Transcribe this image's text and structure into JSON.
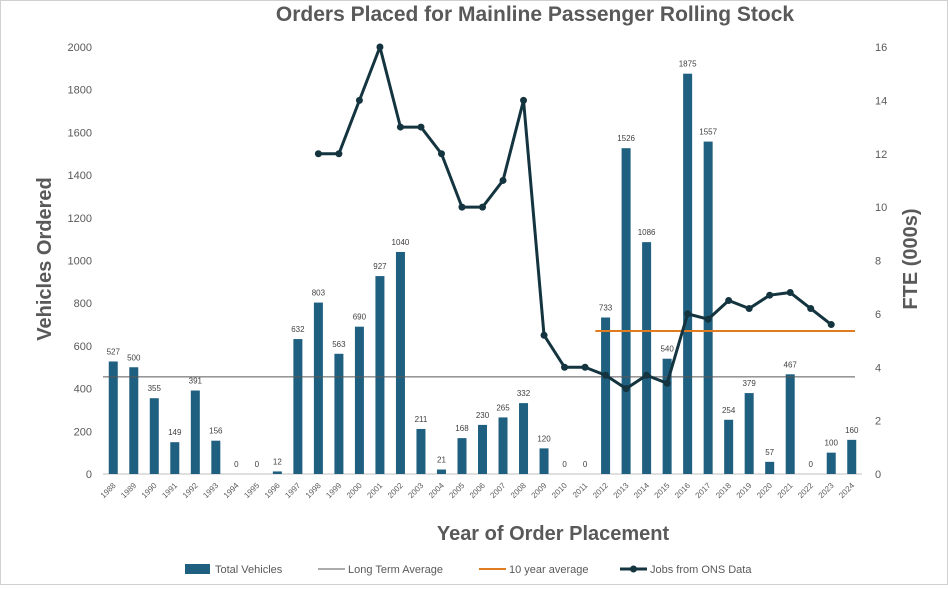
{
  "chart_data": {
    "type": "bar",
    "title": "Orders Placed for Mainline Passenger Rolling Stock",
    "xlabel": "Year of Order Placement",
    "ylabel": "Vehicles Ordered",
    "y2label": "FTE (000s)",
    "ylim": [
      0,
      2000
    ],
    "y2lim": [
      0,
      16
    ],
    "yticks": [
      0,
      200,
      400,
      600,
      800,
      1000,
      1200,
      1400,
      1600,
      1800,
      2000
    ],
    "y2ticks": [
      0,
      2,
      4,
      6,
      8,
      10,
      12,
      14,
      16
    ],
    "grid": false,
    "legend_position": "bottom",
    "categories": [
      "1988",
      "1989",
      "1990",
      "1991",
      "1992",
      "1993",
      "1994",
      "1995",
      "1996",
      "1997",
      "1998",
      "1999",
      "2000",
      "2001",
      "2002",
      "2003",
      "2004",
      "2005",
      "2006",
      "2007",
      "2008",
      "2009",
      "2010",
      "2011",
      "2012",
      "2013",
      "2014",
      "2015",
      "2016",
      "2017",
      "2018",
      "2019",
      "2020",
      "2021",
      "2022",
      "2023",
      "2024"
    ],
    "series": [
      {
        "name": "Total Vehicles",
        "type": "bar",
        "color": "#1f5f7f",
        "values": [
          527,
          500,
          355,
          149,
          391,
          156,
          0,
          0,
          12,
          632,
          803,
          563,
          690,
          927,
          1040,
          211,
          21,
          168,
          230,
          265,
          332,
          120,
          0,
          0,
          733,
          1526,
          1086,
          540,
          1875,
          1557,
          254,
          379,
          57,
          467,
          0,
          100,
          160
        ],
        "labels": [
          "527",
          "500",
          "355",
          "149",
          "391",
          "156",
          "0",
          "0",
          "12",
          "632",
          "803",
          "563",
          "690",
          "927",
          "1040",
          "211",
          "21",
          "168",
          "230",
          "265",
          "332",
          "120",
          "0",
          "0",
          "733",
          "1526",
          "1086",
          "540",
          "1875",
          "1557",
          "254",
          "379",
          "57",
          "467",
          "0",
          "100",
          "160"
        ]
      },
      {
        "name": "Long Term Average",
        "type": "hline",
        "color": "#595959",
        "value": 455,
        "x_start": "1988",
        "x_end": "2024"
      },
      {
        "name": "10 year average",
        "type": "hline",
        "color": "#e07b20",
        "value": 670,
        "x_start": "2012",
        "x_end": "2024"
      },
      {
        "name": "Jobs from ONS Data",
        "type": "line",
        "axis": "secondary",
        "color": "#14343f",
        "x": [
          "1998",
          "1999",
          "2000",
          "2001",
          "2002",
          "2003",
          "2004",
          "2005",
          "2006",
          "2007",
          "2008",
          "2009",
          "2010",
          "2011",
          "2012",
          "2013",
          "2014",
          "2015",
          "2016",
          "2017",
          "2018",
          "2019",
          "2020",
          "2021",
          "2022",
          "2023"
        ],
        "values": [
          12,
          12,
          14,
          16,
          13,
          13,
          12,
          10,
          10,
          11,
          14,
          5.2,
          4,
          4,
          3.7,
          3.2,
          3.7,
          3.4,
          6,
          5.8,
          6.5,
          6.2,
          6.7,
          6.8,
          6.2,
          5.6
        ]
      }
    ]
  }
}
